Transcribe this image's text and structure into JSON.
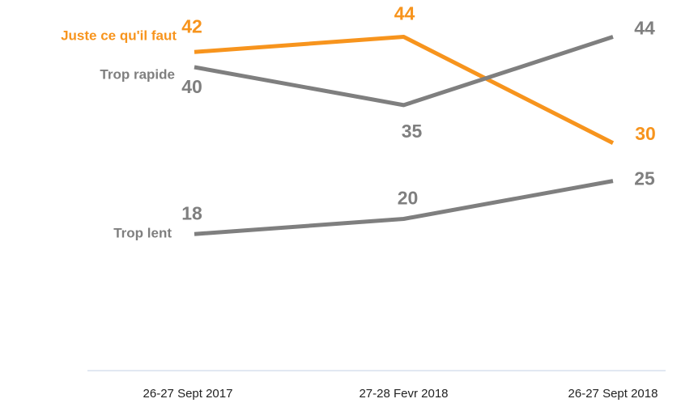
{
  "chart_data": {
    "type": "line",
    "categories": [
      "26-27 Sept 2017",
      "27-28 Fevr 2018",
      "26-27 Sept 2018"
    ],
    "series": [
      {
        "name": "Juste ce qu'il faut",
        "color": "#f7941d",
        "values": [
          42,
          44,
          30
        ]
      },
      {
        "name": "Trop rapide",
        "color": "#7f7f7f",
        "values": [
          40,
          35,
          44
        ]
      },
      {
        "name": "Trop lent",
        "color": "#7f7f7f",
        "values": [
          18,
          20,
          25
        ]
      }
    ],
    "ylim": [
      0,
      48
    ]
  }
}
